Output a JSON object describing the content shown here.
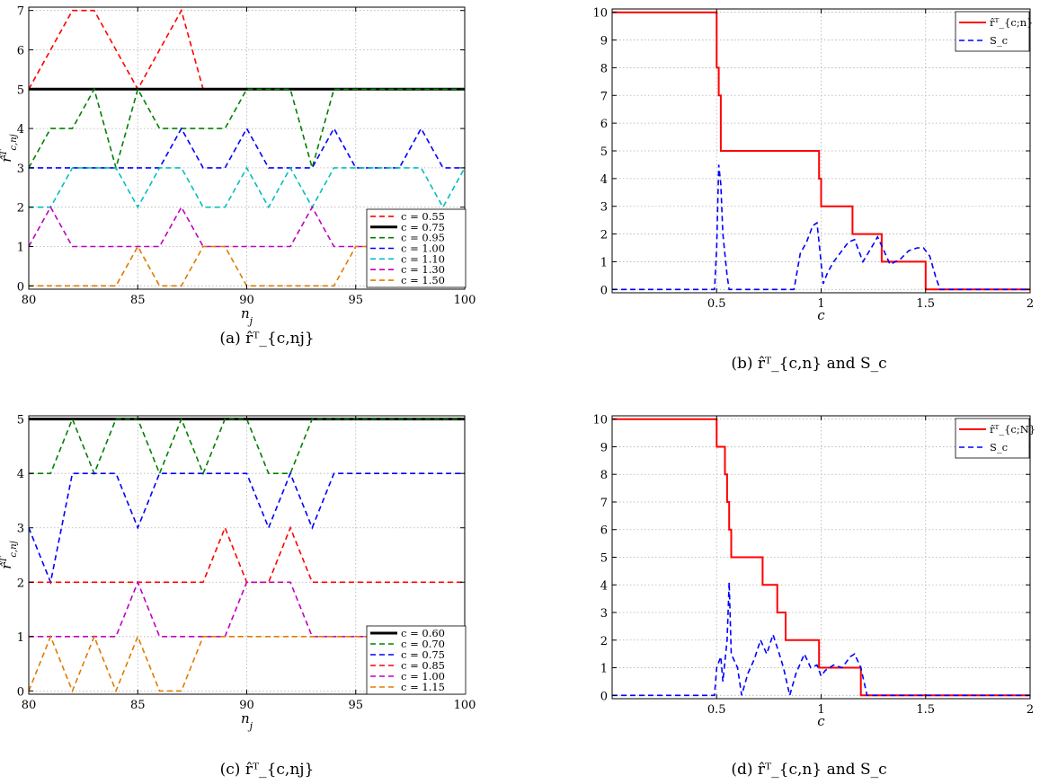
{
  "panels": [
    {
      "id": "a",
      "caption": "(a) r̂ᵀ_{c,nj}",
      "chart_data": {
        "type": "line",
        "xlabel": "n_j",
        "ylabel": "r̂ᵀ_{c,nj}",
        "xlim": [
          80,
          100
        ],
        "ylim": [
          0,
          7
        ],
        "xticks": [
          80,
          85,
          90,
          95,
          100
        ],
        "yticks": [
          0,
          1,
          2,
          3,
          4,
          5,
          6,
          7
        ],
        "grid": true,
        "legend_position": "bottom-right",
        "series": [
          {
            "name": "c = 0.55",
            "color": "#ff0000",
            "dash": true,
            "x": [
              80,
              81,
              82,
              83,
              84,
              85,
              86,
              87,
              88
            ],
            "y": [
              5,
              6,
              7,
              7,
              6,
              5,
              6,
              7,
              5
            ]
          },
          {
            "name": "c = 0.75",
            "color": "#000000",
            "dash": false,
            "x": [
              80,
              100
            ],
            "y": [
              5,
              5
            ]
          },
          {
            "name": "c = 0.95",
            "color": "#008000",
            "dash": true,
            "x": [
              80,
              81,
              82,
              83,
              84,
              85,
              86,
              87,
              88,
              89,
              90,
              91,
              92,
              93,
              94,
              95,
              96,
              97,
              98,
              99,
              100
            ],
            "y": [
              3,
              4,
              4,
              5,
              3,
              5,
              4,
              4,
              4,
              4,
              5,
              5,
              5,
              3,
              5,
              5,
              5,
              5,
              5,
              5,
              5
            ]
          },
          {
            "name": "c = 1.00",
            "color": "#0000ff",
            "dash": true,
            "x": [
              80,
              81,
              82,
              83,
              84,
              85,
              86,
              87,
              88,
              89,
              90,
              91,
              92,
              93,
              94,
              95,
              96,
              97,
              98,
              99,
              100
            ],
            "y": [
              3,
              3,
              3,
              3,
              3,
              3,
              3,
              4,
              3,
              3,
              4,
              3,
              3,
              3,
              4,
              3,
              3,
              3,
              4,
              3,
              3
            ]
          },
          {
            "name": "c = 1.10",
            "color": "#00bfbf",
            "dash": true,
            "x": [
              80,
              81,
              82,
              83,
              84,
              85,
              86,
              87,
              88,
              89,
              90,
              91,
              92,
              93,
              94,
              95,
              96,
              97,
              98,
              99,
              100
            ],
            "y": [
              2,
              2,
              3,
              3,
              3,
              2,
              3,
              3,
              2,
              2,
              3,
              2,
              3,
              2,
              3,
              3,
              3,
              3,
              3,
              2,
              3
            ]
          },
          {
            "name": "c = 1.30",
            "color": "#bf00bf",
            "dash": true,
            "x": [
              80,
              81,
              82,
              83,
              84,
              85,
              86,
              87,
              88,
              89,
              90,
              91,
              92,
              93,
              94,
              95,
              96,
              97,
              98,
              99,
              100
            ],
            "y": [
              1,
              2,
              1,
              1,
              1,
              1,
              1,
              2,
              1,
              1,
              1,
              1,
              1,
              2,
              1,
              1,
              1,
              1,
              1,
              1,
              1
            ]
          },
          {
            "name": "c = 1.50",
            "color": "#e07b00",
            "dash": true,
            "x": [
              80,
              81,
              82,
              83,
              84,
              85,
              86,
              87,
              88,
              89,
              90,
              91,
              92,
              93,
              94,
              95,
              96,
              97,
              98,
              99,
              100
            ],
            "y": [
              0,
              0,
              0,
              0,
              0,
              1,
              0,
              0,
              1,
              1,
              0,
              0,
              0,
              0,
              0,
              1,
              1,
              1,
              1,
              1,
              1
            ]
          }
        ]
      }
    },
    {
      "id": "b",
      "caption": "(b) r̂ᵀ_{c,n} and S_c",
      "chart_data": {
        "type": "line",
        "xlabel": "c",
        "ylabel": "",
        "xlim": [
          0,
          2
        ],
        "ylim": [
          0,
          10
        ],
        "xticks": [
          0.5,
          1,
          1.5,
          2
        ],
        "xticklabels": [
          "0.5",
          "1",
          "1.5",
          "2"
        ],
        "yticks": [
          0,
          1,
          2,
          3,
          4,
          5,
          6,
          7,
          8,
          9,
          10
        ],
        "grid": true,
        "legend_position": "top-right",
        "series": [
          {
            "name": "r̂ᵀ_{c;n}",
            "color": "#ff0000",
            "dash": false,
            "step": true,
            "x": [
              0,
              0.5,
              0.5,
              0.51,
              0.51,
              0.52,
              0.52,
              0.99,
              0.99,
              1.0,
              1.0,
              1.15,
              1.15,
              1.29,
              1.29,
              1.5,
              1.5,
              2.0
            ],
            "y": [
              10,
              10,
              8,
              8,
              7,
              7,
              5,
              5,
              4,
              4,
              3,
              3,
              2,
              2,
              1,
              1,
              0,
              0
            ]
          },
          {
            "name": "S_c",
            "color": "#0000ff",
            "dash": true,
            "x": [
              0,
              0.49,
              0.5,
              0.51,
              0.52,
              0.53,
              0.55,
              0.56,
              0.87,
              0.9,
              0.93,
              0.96,
              0.98,
              0.99,
              1.01,
              1.03,
              1.06,
              1.09,
              1.13,
              1.16,
              1.2,
              1.24,
              1.27,
              1.3,
              1.33,
              1.38,
              1.42,
              1.46,
              1.49,
              1.52,
              1.55,
              1.57,
              2.0
            ],
            "y": [
              0,
              0,
              1.5,
              4.5,
              3.8,
              2,
              0.5,
              0,
              0,
              1.3,
              1.7,
              2.3,
              2.4,
              1.7,
              0.2,
              0.6,
              1.0,
              1.3,
              1.7,
              1.8,
              1.0,
              1.5,
              1.9,
              1.4,
              0.9,
              1.1,
              1.4,
              1.5,
              1.5,
              1.2,
              0.4,
              0,
              0
            ]
          }
        ]
      }
    },
    {
      "id": "c",
      "caption": "(c) r̂ᵀ_{c,nj}",
      "chart_data": {
        "type": "line",
        "xlabel": "n_j",
        "ylabel": "r̂ᵀ_{c,nj}",
        "xlim": [
          80,
          100
        ],
        "ylim": [
          0,
          5
        ],
        "xticks": [
          80,
          85,
          90,
          95,
          100
        ],
        "yticks": [
          0,
          1,
          2,
          3,
          4,
          5
        ],
        "grid": true,
        "legend_position": "bottom-right",
        "series": [
          {
            "name": "c = 0.60",
            "color": "#000000",
            "dash": false,
            "x": [
              80,
              100
            ],
            "y": [
              5,
              5
            ]
          },
          {
            "name": "c = 0.70",
            "color": "#008000",
            "dash": true,
            "x": [
              80,
              81,
              82,
              83,
              84,
              85,
              86,
              87,
              88,
              89,
              90,
              91,
              92,
              93,
              94,
              95,
              96,
              97,
              98,
              99,
              100
            ],
            "y": [
              4,
              4,
              5,
              4,
              5,
              5,
              4,
              5,
              4,
              5,
              5,
              4,
              4,
              5,
              5,
              5,
              5,
              5,
              5,
              5,
              5
            ]
          },
          {
            "name": "c = 0.75",
            "color": "#0000ff",
            "dash": true,
            "x": [
              80,
              81,
              82,
              83,
              84,
              85,
              86,
              87,
              88,
              89,
              90,
              91,
              92,
              93,
              94,
              95,
              96,
              97,
              98,
              99,
              100
            ],
            "y": [
              3,
              2,
              4,
              4,
              4,
              3,
              4,
              4,
              4,
              4,
              4,
              3,
              4,
              3,
              4,
              4,
              4,
              4,
              4,
              4,
              4
            ]
          },
          {
            "name": "c = 0.85",
            "color": "#ff0000",
            "dash": true,
            "x": [
              80,
              81,
              82,
              83,
              84,
              85,
              86,
              87,
              88,
              89,
              90,
              91,
              92,
              93,
              94,
              95,
              96,
              97,
              98,
              99,
              100
            ],
            "y": [
              2,
              2,
              2,
              2,
              2,
              2,
              2,
              2,
              2,
              3,
              2,
              2,
              3,
              2,
              2,
              2,
              2,
              2,
              2,
              2,
              2
            ]
          },
          {
            "name": "c = 1.00",
            "color": "#bf00bf",
            "dash": true,
            "x": [
              80,
              81,
              82,
              83,
              84,
              85,
              86,
              87,
              88,
              89,
              90,
              91,
              92,
              93,
              94,
              95,
              96,
              97,
              98,
              99,
              100
            ],
            "y": [
              1,
              1,
              1,
              1,
              1,
              2,
              1,
              1,
              1,
              1,
              2,
              2,
              2,
              1,
              1,
              1,
              1,
              1,
              1,
              1,
              1
            ]
          },
          {
            "name": "c = 1.15",
            "color": "#e07b00",
            "dash": true,
            "x": [
              80,
              81,
              82,
              83,
              84,
              85,
              86,
              87,
              88,
              89,
              90,
              91,
              92,
              93,
              94,
              95,
              96,
              97,
              98,
              99,
              100
            ],
            "y": [
              0,
              1,
              0,
              1,
              0,
              1,
              0,
              0,
              1,
              1,
              1,
              1,
              1,
              1,
              1,
              1,
              1,
              1,
              1,
              1,
              1
            ]
          }
        ]
      }
    },
    {
      "id": "d",
      "caption": "(d) r̂ᵀ_{c,n} and S_c",
      "chart_data": {
        "type": "line",
        "xlabel": "c",
        "ylabel": "",
        "xlim": [
          0,
          2
        ],
        "ylim": [
          0,
          10
        ],
        "xticks": [
          0.5,
          1,
          1.5,
          2
        ],
        "xticklabels": [
          "0.5",
          "1",
          "1.5",
          "2"
        ],
        "yticks": [
          0,
          1,
          2,
          3,
          4,
          5,
          6,
          7,
          8,
          9,
          10
        ],
        "grid": true,
        "legend_position": "top-right",
        "series": [
          {
            "name": "r̂ᵀ_{c;N}",
            "color": "#ff0000",
            "dash": false,
            "step": true,
            "x": [
              0,
              0.5,
              0.5,
              0.54,
              0.54,
              0.55,
              0.55,
              0.56,
              0.56,
              0.57,
              0.57,
              0.72,
              0.72,
              0.79,
              0.79,
              0.83,
              0.83,
              0.99,
              0.99,
              1.19,
              1.19,
              2.0
            ],
            "y": [
              10,
              10,
              9,
              9,
              8,
              8,
              7,
              7,
              6,
              6,
              5,
              5,
              4,
              4,
              3,
              3,
              2,
              2,
              1,
              1,
              0,
              0
            ]
          },
          {
            "name": "S_c",
            "color": "#0000ff",
            "dash": true,
            "x": [
              0,
              0.49,
              0.5,
              0.52,
              0.53,
              0.55,
              0.56,
              0.57,
              0.6,
              0.62,
              0.65,
              0.68,
              0.71,
              0.74,
              0.77,
              0.8,
              0.82,
              0.85,
              0.88,
              0.92,
              0.95,
              0.98,
              1.0,
              1.02,
              1.06,
              1.1,
              1.14,
              1.16,
              1.19,
              1.22,
              2.0
            ],
            "y": [
              0,
              0,
              1.0,
              1.4,
              0.5,
              2.0,
              4.1,
              1.5,
              1.0,
              0,
              0.8,
              1.3,
              2.0,
              1.5,
              2.2,
              1.5,
              1.0,
              0,
              0.8,
              1.5,
              1.0,
              1.1,
              0.7,
              0.9,
              1.1,
              1.0,
              1.4,
              1.5,
              1.0,
              0,
              0
            ]
          }
        ]
      }
    }
  ]
}
